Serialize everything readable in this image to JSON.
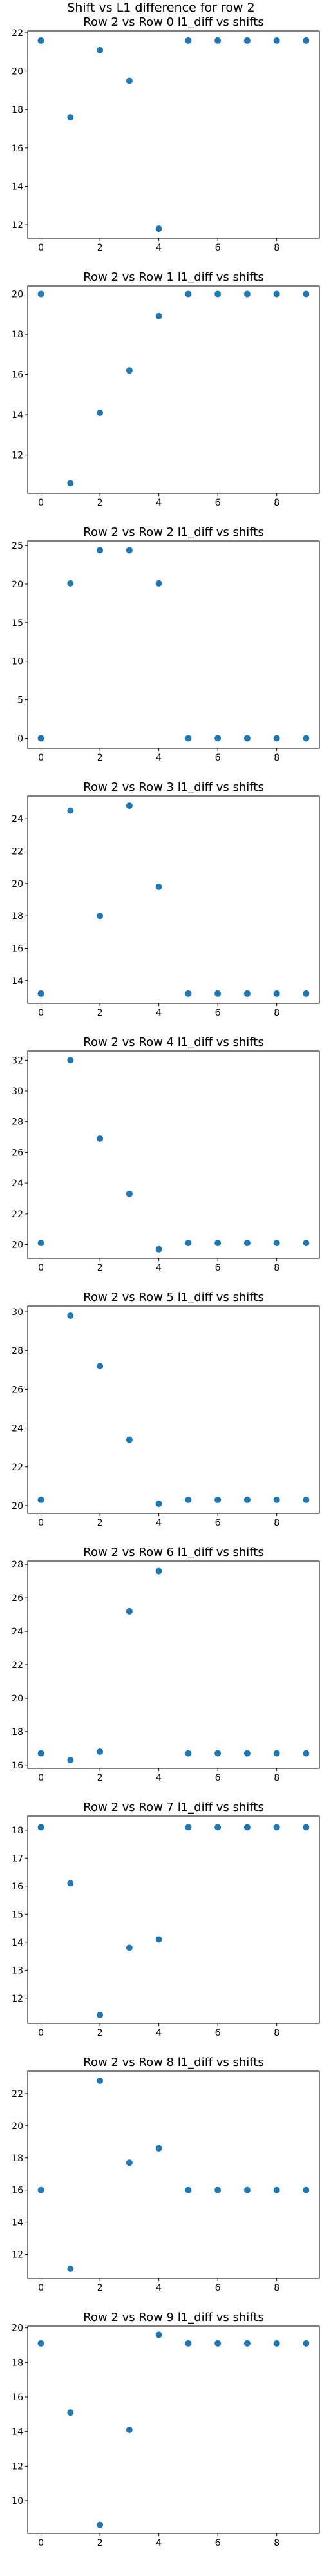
{
  "figure": {
    "suptitle": "Shift vs L1 difference for row 2"
  },
  "style": {
    "marker_color": "#1f77b4",
    "axes_color": "#000000",
    "background": "#ffffff"
  },
  "chart_data": [
    {
      "type": "scatter",
      "title": "Row 2 vs Row 0 l1_diff vs shifts",
      "x": [
        0,
        1,
        2,
        3,
        4,
        5,
        6,
        7,
        8,
        9
      ],
      "y": [
        21.6,
        17.6,
        21.1,
        19.5,
        11.8,
        21.6,
        21.6,
        21.6,
        21.6,
        21.6
      ],
      "xlim": [
        -0.45,
        9.45
      ],
      "ylim": [
        11.3,
        22.1
      ],
      "xticks": [
        0,
        2,
        4,
        6,
        8
      ],
      "yticks": [
        12,
        14,
        16,
        18,
        20,
        22
      ]
    },
    {
      "type": "scatter",
      "title": "Row 2 vs Row 1 l1_diff vs shifts",
      "x": [
        0,
        1,
        2,
        3,
        4,
        5,
        6,
        7,
        8,
        9
      ],
      "y": [
        20.0,
        10.6,
        14.1,
        16.2,
        18.9,
        20.0,
        20.0,
        20.0,
        20.0,
        20.0
      ],
      "xlim": [
        -0.45,
        9.45
      ],
      "ylim": [
        10.1,
        20.4
      ],
      "xticks": [
        0,
        2,
        4,
        6,
        8
      ],
      "yticks": [
        12,
        14,
        16,
        18,
        20
      ]
    },
    {
      "type": "scatter",
      "title": "Row 2 vs Row 2 l1_diff vs shifts",
      "x": [
        0,
        1,
        2,
        3,
        4,
        5,
        6,
        7,
        8,
        9
      ],
      "y": [
        0,
        20.1,
        24.4,
        24.4,
        20.1,
        0,
        0,
        0,
        0,
        0
      ],
      "xlim": [
        -0.45,
        9.45
      ],
      "ylim": [
        -1.3,
        25.6
      ],
      "xticks": [
        0,
        2,
        4,
        6,
        8
      ],
      "yticks": [
        0,
        5,
        10,
        15,
        20,
        25
      ]
    },
    {
      "type": "scatter",
      "title": "Row 2 vs Row 3 l1_diff vs shifts",
      "x": [
        0,
        1,
        2,
        3,
        4,
        5,
        6,
        7,
        8,
        9
      ],
      "y": [
        13.2,
        24.5,
        18.0,
        24.8,
        19.8,
        13.2,
        13.2,
        13.2,
        13.2,
        13.2
      ],
      "xlim": [
        -0.45,
        9.45
      ],
      "ylim": [
        12.6,
        25.4
      ],
      "xticks": [
        0,
        2,
        4,
        6,
        8
      ],
      "yticks": [
        14,
        16,
        18,
        20,
        22,
        24
      ]
    },
    {
      "type": "scatter",
      "title": "Row 2 vs Row 4 l1_diff vs shifts",
      "x": [
        0,
        1,
        2,
        3,
        4,
        5,
        6,
        7,
        8,
        9
      ],
      "y": [
        20.1,
        32.0,
        26.9,
        23.3,
        19.7,
        20.1,
        20.1,
        20.1,
        20.1,
        20.1
      ],
      "xlim": [
        -0.45,
        9.45
      ],
      "ylim": [
        19.1,
        32.6
      ],
      "xticks": [
        0,
        2,
        4,
        6,
        8
      ],
      "yticks": [
        20,
        22,
        24,
        26,
        28,
        30,
        32
      ]
    },
    {
      "type": "scatter",
      "title": "Row 2 vs Row 5 l1_diff vs shifts",
      "x": [
        0,
        1,
        2,
        3,
        4,
        5,
        6,
        7,
        8,
        9
      ],
      "y": [
        20.3,
        29.8,
        27.2,
        23.4,
        20.1,
        20.3,
        20.3,
        20.3,
        20.3,
        20.3
      ],
      "xlim": [
        -0.45,
        9.45
      ],
      "ylim": [
        19.6,
        30.3
      ],
      "xticks": [
        0,
        2,
        4,
        6,
        8
      ],
      "yticks": [
        20,
        22,
        24,
        26,
        28,
        30
      ]
    },
    {
      "type": "scatter",
      "title": "Row 2 vs Row 6 l1_diff vs shifts",
      "x": [
        0,
        1,
        2,
        3,
        4,
        5,
        6,
        7,
        8,
        9
      ],
      "y": [
        16.7,
        16.3,
        16.8,
        25.2,
        27.6,
        16.7,
        16.7,
        16.7,
        16.7,
        16.7
      ],
      "xlim": [
        -0.45,
        9.45
      ],
      "ylim": [
        15.8,
        28.2
      ],
      "xticks": [
        0,
        2,
        4,
        6,
        8
      ],
      "yticks": [
        16,
        18,
        20,
        22,
        24,
        26,
        28
      ]
    },
    {
      "type": "scatter",
      "title": "Row 2 vs Row 7 l1_diff vs shifts",
      "x": [
        0,
        1,
        2,
        3,
        4,
        5,
        6,
        7,
        8,
        9
      ],
      "y": [
        18.1,
        16.1,
        11.4,
        13.8,
        14.1,
        18.1,
        18.1,
        18.1,
        18.1,
        18.1
      ],
      "xlim": [
        -0.45,
        9.45
      ],
      "ylim": [
        11.1,
        18.5
      ],
      "xticks": [
        0,
        2,
        4,
        6,
        8
      ],
      "yticks": [
        12,
        13,
        14,
        15,
        16,
        17,
        18
      ]
    },
    {
      "type": "scatter",
      "title": "Row 2 vs Row 8 l1_diff vs shifts",
      "x": [
        0,
        1,
        2,
        3,
        4,
        5,
        6,
        7,
        8,
        9
      ],
      "y": [
        16.0,
        11.1,
        22.8,
        17.7,
        18.6,
        16.0,
        16.0,
        16.0,
        16.0,
        16.0
      ],
      "xlim": [
        -0.45,
        9.45
      ],
      "ylim": [
        10.5,
        23.4
      ],
      "xticks": [
        0,
        2,
        4,
        6,
        8
      ],
      "yticks": [
        12,
        14,
        16,
        18,
        20,
        22
      ]
    },
    {
      "type": "scatter",
      "title": "Row 2 vs Row 9 l1_diff vs shifts",
      "x": [
        0,
        1,
        2,
        3,
        4,
        5,
        6,
        7,
        8,
        9
      ],
      "y": [
        19.1,
        15.1,
        8.6,
        14.1,
        19.6,
        19.1,
        19.1,
        19.1,
        19.1,
        19.1
      ],
      "xlim": [
        -0.45,
        9.45
      ],
      "ylim": [
        8.1,
        20.1
      ],
      "xticks": [
        0,
        2,
        4,
        6,
        8
      ],
      "yticks": [
        10,
        12,
        14,
        16,
        18,
        20
      ]
    }
  ]
}
